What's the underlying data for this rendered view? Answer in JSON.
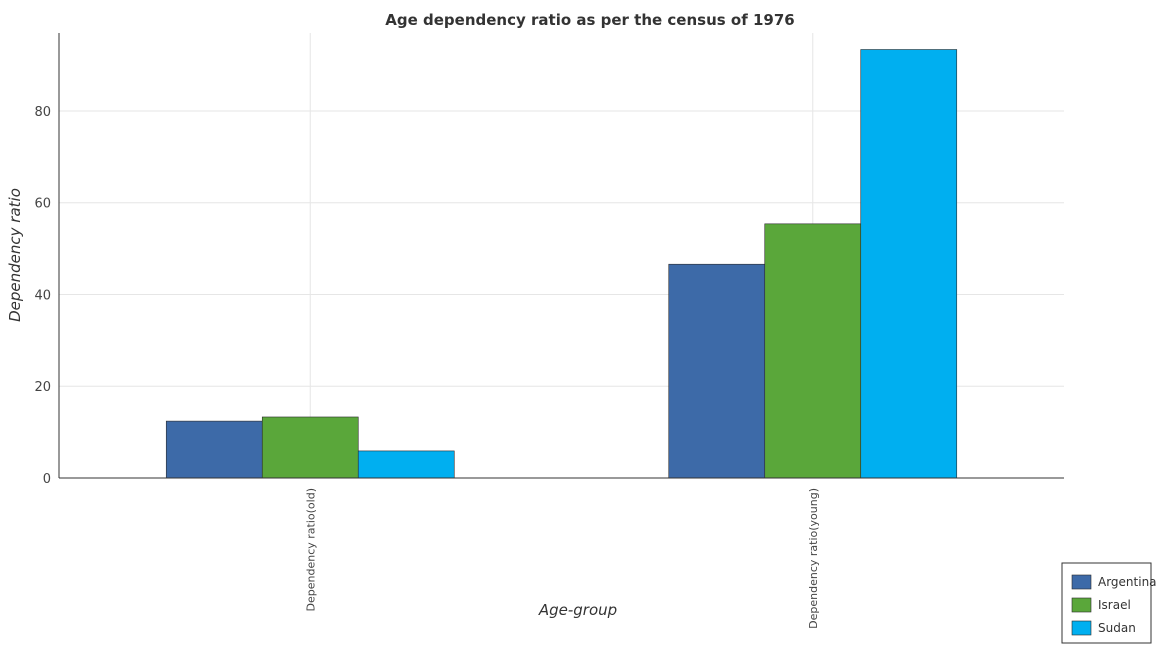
{
  "chart_data": {
    "type": "bar",
    "title": "Age dependency ratio as per the census of 1976",
    "xlabel": "Age-group",
    "ylabel": "Dependency ratio",
    "categories": [
      "Dependency ratio(old)",
      "Dependency ratio(young)"
    ],
    "ylim": [
      0,
      97
    ],
    "yticks": [
      0,
      20,
      40,
      60,
      80
    ],
    "grid": true,
    "legend_position": "bottom-right",
    "series": [
      {
        "name": "Argentina",
        "color": "#3d6aa8",
        "values": [
          12.4,
          46.6
        ]
      },
      {
        "name": "Israel",
        "color": "#5aa73a",
        "values": [
          13.3,
          55.4
        ]
      },
      {
        "name": "Sudan",
        "color": "#00aff0",
        "values": [
          5.9,
          93.4
        ]
      }
    ]
  }
}
